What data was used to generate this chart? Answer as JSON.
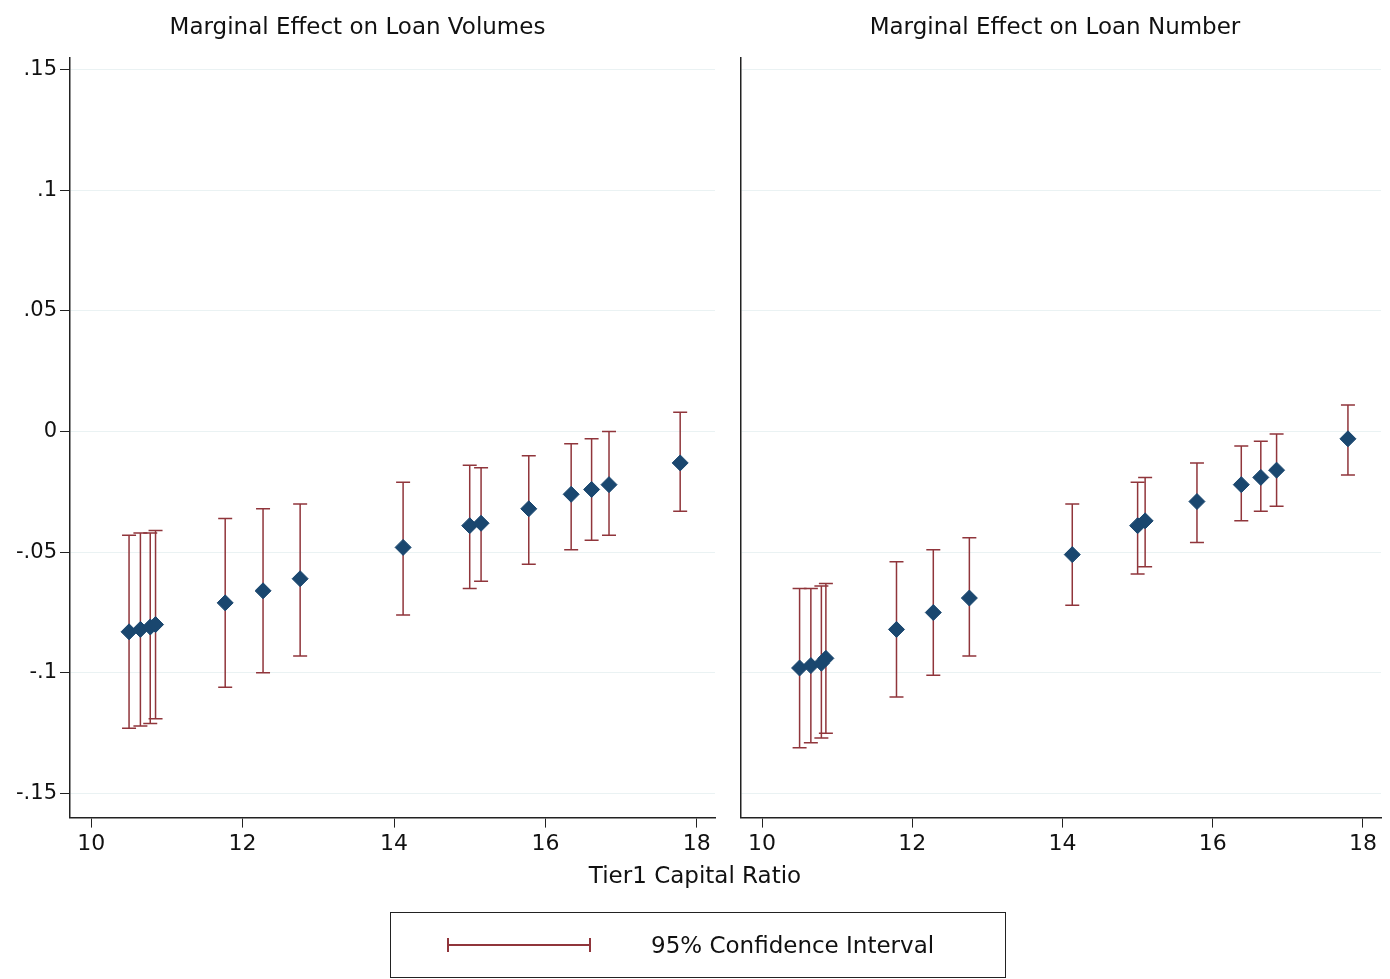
{
  "chart_data": [
    {
      "type": "scatter",
      "title": "Marginal Effect on Loan Volumes",
      "xlabel": "Tier1 Capital Ratio",
      "legend": "bottom",
      "marker": "diamond",
      "grid": "y",
      "xlim": [
        9.72,
        18.24
      ],
      "xticks": [
        10,
        12,
        14,
        16,
        18
      ],
      "ylim": [
        -0.16,
        0.155
      ],
      "yticks": [
        {
          "value": -0.15,
          "label": "-.15"
        },
        {
          "value": -0.1,
          "label": "-.1"
        },
        {
          "value": -0.05,
          "label": "-.05"
        },
        {
          "value": 0,
          "label": "0"
        },
        {
          "value": 0.05,
          "label": ".05"
        },
        {
          "value": 0.1,
          "label": ".1"
        },
        {
          "value": 0.15,
          "label": ".15"
        }
      ],
      "series": [
        {
          "name": "95% Confidence Interval",
          "color": "#1a476f",
          "x": [
            10.5,
            10.65,
            10.78,
            10.85,
            11.77,
            12.27,
            12.76,
            14.12,
            15.0,
            15.15,
            15.78,
            16.34,
            16.61,
            16.84,
            17.78
          ],
          "values": [
            -0.083,
            -0.082,
            -0.081,
            -0.08,
            -0.071,
            -0.066,
            -0.061,
            -0.048,
            -0.039,
            -0.038,
            -0.032,
            -0.026,
            -0.024,
            -0.022,
            -0.013
          ],
          "errors": [
            [
              -0.123,
              -0.043
            ],
            [
              -0.122,
              -0.042
            ],
            [
              -0.121,
              -0.042
            ],
            [
              -0.119,
              -0.041
            ],
            [
              -0.106,
              -0.036
            ],
            [
              -0.1,
              -0.032
            ],
            [
              -0.093,
              -0.03
            ],
            [
              -0.076,
              -0.021
            ],
            [
              -0.065,
              -0.014
            ],
            [
              -0.062,
              -0.015
            ],
            [
              -0.055,
              -0.01
            ],
            [
              -0.049,
              -0.005
            ],
            [
              -0.045,
              -0.003
            ],
            [
              -0.043,
              0.0
            ],
            [
              -0.033,
              0.008
            ]
          ]
        }
      ]
    },
    {
      "type": "scatter",
      "title": "Marginal Effect on Loan Number",
      "marker": "diamond",
      "grid": "y",
      "tick_labels": "x",
      "xlim": [
        9.72,
        18.24
      ],
      "xticks": [
        10,
        12,
        14,
        16,
        18
      ],
      "ylim": [
        -0.16,
        0.155
      ],
      "yticks": [
        -0.15,
        -0.1,
        -0.05,
        0,
        0.05,
        0.1,
        0.15
      ],
      "series": [
        {
          "color": "#1a476f",
          "x": [
            10.5,
            10.65,
            10.79,
            10.85,
            11.79,
            12.28,
            12.76,
            14.13,
            15.0,
            15.1,
            15.79,
            16.38,
            16.64,
            16.85,
            17.8
          ],
          "values": [
            -0.098,
            -0.097,
            -0.096,
            -0.094,
            -0.082,
            -0.075,
            -0.069,
            -0.051,
            -0.039,
            -0.037,
            -0.029,
            -0.022,
            -0.019,
            -0.016,
            -0.003
          ],
          "errors": [
            [
              -0.131,
              -0.065
            ],
            [
              -0.129,
              -0.065
            ],
            [
              -0.127,
              -0.064
            ],
            [
              -0.125,
              -0.063
            ],
            [
              -0.11,
              -0.054
            ],
            [
              -0.101,
              -0.049
            ],
            [
              -0.093,
              -0.044
            ],
            [
              -0.072,
              -0.03
            ],
            [
              -0.059,
              -0.021
            ],
            [
              -0.056,
              -0.019
            ],
            [
              -0.046,
              -0.013
            ],
            [
              -0.037,
              -0.006
            ],
            [
              -0.033,
              -0.004
            ],
            [
              -0.031,
              -0.001
            ],
            [
              -0.018,
              0.011
            ]
          ]
        }
      ]
    }
  ]
}
